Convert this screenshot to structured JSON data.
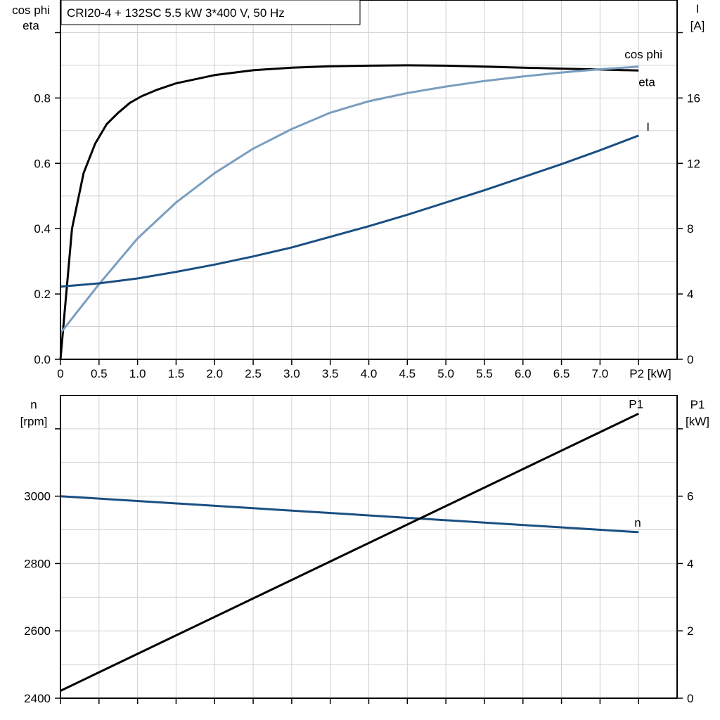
{
  "title": "CRI20-4 + 132SC   5.5 kW   3*400 V, 50 Hz",
  "colors": {
    "eta": "#000000",
    "cos_phi": "#7a9ebf",
    "I": "#1a4f82",
    "n": "#1a4f82",
    "P1": "#000000",
    "grid": "#d0d0d0"
  },
  "chart_data": [
    {
      "type": "line",
      "xlabel": "P2 [kW]",
      "xlim": [
        0,
        8
      ],
      "xticks": [
        0,
        0.5,
        1.0,
        1.5,
        2.0,
        2.5,
        3.0,
        3.5,
        4.0,
        4.5,
        5.0,
        5.5,
        6.0,
        6.5,
        7.0
      ],
      "xtick_labels": [
        "0",
        "0.5",
        "1.0",
        "1.5",
        "2.0",
        "2.5",
        "3.0",
        "3.5",
        "4.0",
        "4.5",
        "5.0",
        "5.5",
        "6.0",
        "6.5",
        "7.0"
      ],
      "ylabel_left": [
        "cos phi",
        "eta"
      ],
      "ylim_left": [
        0,
        1.1
      ],
      "yticks_left": [
        "0.0",
        "0.2",
        "0.4",
        "0.6",
        "0.8"
      ],
      "ylabel_right": [
        "I",
        "[A]"
      ],
      "ylim_right": [
        0,
        22
      ],
      "yticks_right": [
        "0",
        "4",
        "8",
        "12",
        "16"
      ],
      "grid": true,
      "series": [
        {
          "name": "eta",
          "axis": "left",
          "x": [
            0,
            0.15,
            0.3,
            0.45,
            0.6,
            0.75,
            0.9,
            1.05,
            1.25,
            1.5,
            2.0,
            2.5,
            3.0,
            3.5,
            4.0,
            4.5,
            5.0,
            5.5,
            6.0,
            6.5,
            7.0,
            7.5
          ],
          "y": [
            0,
            0.4,
            0.57,
            0.66,
            0.72,
            0.755,
            0.785,
            0.805,
            0.825,
            0.845,
            0.87,
            0.885,
            0.893,
            0.897,
            0.899,
            0.9,
            0.899,
            0.896,
            0.893,
            0.89,
            0.887,
            0.884
          ]
        },
        {
          "name": "cos phi",
          "axis": "left",
          "x": [
            0,
            0.5,
            1.0,
            1.5,
            2.0,
            2.5,
            3.0,
            3.5,
            4.0,
            4.5,
            5.0,
            5.5,
            6.0,
            6.5,
            7.0,
            7.5
          ],
          "y": [
            0.08,
            0.23,
            0.37,
            0.48,
            0.57,
            0.645,
            0.705,
            0.755,
            0.79,
            0.815,
            0.835,
            0.852,
            0.866,
            0.878,
            0.888,
            0.896
          ]
        },
        {
          "name": "I",
          "axis": "right",
          "x": [
            0,
            0.5,
            1.0,
            1.5,
            2.0,
            2.5,
            3.0,
            3.5,
            4.0,
            4.5,
            5.0,
            5.5,
            6.0,
            6.5,
            7.0,
            7.5
          ],
          "y": [
            4.45,
            4.65,
            4.95,
            5.35,
            5.8,
            6.3,
            6.85,
            7.5,
            8.15,
            8.85,
            9.6,
            10.35,
            11.15,
            11.95,
            12.8,
            13.7
          ]
        }
      ]
    },
    {
      "type": "line",
      "xlim": [
        0,
        8
      ],
      "ylabel_left": [
        "n",
        "[rpm]"
      ],
      "ylim_left": [
        2400,
        3300
      ],
      "yticks_left": [
        "2400",
        "2600",
        "2800",
        "3000"
      ],
      "ylabel_right": [
        "P1",
        "[kW]"
      ],
      "ylim_right": [
        0,
        9
      ],
      "yticks_right": [
        "0",
        "2",
        "4",
        "6"
      ],
      "grid": true,
      "series": [
        {
          "name": "n",
          "axis": "left",
          "x": [
            0,
            7.5
          ],
          "y": [
            3000,
            2893
          ]
        },
        {
          "name": "P1",
          "axis": "right",
          "x": [
            0,
            7.5
          ],
          "y": [
            0.22,
            8.45
          ]
        }
      ]
    }
  ]
}
